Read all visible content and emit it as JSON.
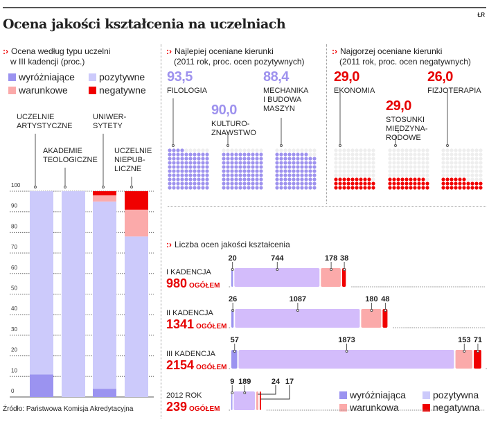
{
  "header": {
    "title": "Ocena jakości kształcenia na uczelniach",
    "credit": "ŁR"
  },
  "colors": {
    "wyrozniajace": "#9b93f0",
    "pozytywne": "#cccafb",
    "pozytywne_bottom": "#d3bcfb",
    "warunkowe": "#fbaaaa",
    "negatywne": "#f00000",
    "accent": "#e60000",
    "best_dots": "#9e92ee"
  },
  "left": {
    "title_line1": "Ocena według typu uczelni",
    "title_line2": "w III kadencji (proc.)",
    "legend": [
      "wyróżniające",
      "pozytywne",
      "warunkowe",
      "negatywne"
    ]
  },
  "best": {
    "title_line1": "Najlepiej oceniane kierunki",
    "title_line2": "(2011 rok, proc. ocen pozytywnych)",
    "items": [
      {
        "value": "93,5",
        "label": [
          "FILOLOGIA"
        ]
      },
      {
        "value": "90,0",
        "label": [
          "KULTURO-",
          "ZNAWSTWO"
        ]
      },
      {
        "value": "88,4",
        "label": [
          "MECHANIKA",
          "I BUDOWA",
          "MASZYN"
        ]
      }
    ]
  },
  "worst": {
    "title_line1": "Najgorzej oceniane kierunki",
    "title_line2": "(2011 rok, proc. ocen negatywnych)",
    "items": [
      {
        "value": "29,0",
        "label": [
          "EKONOMIA"
        ]
      },
      {
        "value": "29,0",
        "label": [
          "STOSUNKI",
          "MIĘDZYNA-",
          "RODOWE"
        ]
      },
      {
        "value": "26,0",
        "label": [
          "FIZJOTERAPIA"
        ]
      }
    ]
  },
  "counts": {
    "title": "Liczba ocen jakości kształcenia",
    "total_suffix": "OGÓŁEM",
    "legend": [
      "wyróżniająca",
      "pozytywna",
      "warunkowa",
      "negatywna"
    ]
  },
  "source": "Źródło: Państwowa Komisja Akredytacyjna",
  "chart_data": [
    {
      "type": "bar",
      "stacked": true,
      "title": "Ocena według typu uczelni w III kadencji (proc.)",
      "categories": [
        "UCZELNIE ARTYSTYCZNE",
        "AKADEMIE TEOLOGICZNE",
        "UNIWER-SYTETY",
        "UCZELNIE NIEPUB-LICZNE"
      ],
      "category_lines": [
        [
          "UCZELNIE",
          "ARTYSTYCZNE"
        ],
        [
          "AKADEMIE",
          "TEOLOGICZNE"
        ],
        [
          "UNIWER-",
          "SYTETY"
        ],
        [
          "UCZELNIE",
          "NIEPUB-",
          "LICZNE"
        ]
      ],
      "series": [
        {
          "name": "wyróżniające",
          "values": [
            11,
            0,
            4,
            0
          ]
        },
        {
          "name": "pozytywne",
          "values": [
            89,
            100,
            91,
            78
          ]
        },
        {
          "name": "warunkowe",
          "values": [
            0,
            0,
            3,
            13
          ]
        },
        {
          "name": "negatywne",
          "values": [
            0,
            0,
            2,
            9
          ]
        }
      ],
      "ylim": [
        0,
        100
      ],
      "yticks": [
        0,
        10,
        20,
        30,
        40,
        50,
        60,
        70,
        80,
        90,
        100
      ],
      "grid": true
    },
    {
      "type": "bar",
      "orientation": "horizontal",
      "stacked": true,
      "title": "Liczba ocen jakości kształcenia",
      "categories": [
        "I KADENCJA",
        "II KADENCJA",
        "III KADENCJA",
        "2012 ROK"
      ],
      "totals": [
        980,
        1341,
        2154,
        239
      ],
      "series": [
        {
          "name": "wyróżniająca",
          "values": [
            20,
            26,
            57,
            9
          ]
        },
        {
          "name": "pozytywna",
          "values": [
            744,
            1087,
            1873,
            189
          ]
        },
        {
          "name": "warunkowa",
          "values": [
            178,
            180,
            153,
            24
          ]
        },
        {
          "name": "negatywna",
          "values": [
            38,
            48,
            71,
            17
          ]
        }
      ],
      "legend": "bottom-right"
    }
  ]
}
